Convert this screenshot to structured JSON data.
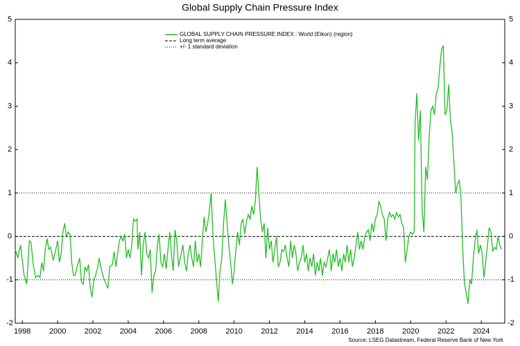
{
  "chart_data": {
    "type": "line",
    "title": "Global Supply Chain Pressure Index",
    "source": "Source: LSEG Datastream, Federal Reserve Bank of New York",
    "x": [
      1997.6,
      1997.75,
      1997.9,
      1998.1,
      1998.25,
      1998.4,
      1998.5,
      1998.6,
      1998.75,
      1998.9,
      1999.0,
      1999.1,
      1999.2,
      1999.3,
      1999.4,
      1999.5,
      1999.6,
      1999.75,
      1999.9,
      2000.0,
      2000.1,
      2000.2,
      2000.3,
      2000.4,
      2000.5,
      2000.6,
      2000.7,
      2000.8,
      2000.9,
      2001.0,
      2001.1,
      2001.25,
      2001.35,
      2001.45,
      2001.55,
      2001.65,
      2001.75,
      2001.85,
      2001.95,
      2002.05,
      2002.15,
      2002.25,
      2002.35,
      2002.5,
      2002.6,
      2002.75,
      2002.85,
      2002.95,
      2003.1,
      2003.2,
      2003.3,
      2003.4,
      2003.5,
      2003.6,
      2003.7,
      2003.8,
      2003.9,
      2004.0,
      2004.1,
      2004.2,
      2004.3,
      2004.4,
      2004.5,
      2004.55,
      2004.65,
      2004.75,
      2004.85,
      2004.95,
      2005.05,
      2005.15,
      2005.25,
      2005.35,
      2005.45,
      2005.55,
      2005.65,
      2005.75,
      2005.85,
      2005.95,
      2006.05,
      2006.15,
      2006.25,
      2006.35,
      2006.45,
      2006.55,
      2006.65,
      2006.75,
      2006.85,
      2006.95,
      2007.1,
      2007.2,
      2007.3,
      2007.4,
      2007.5,
      2007.6,
      2007.7,
      2007.8,
      2007.9,
      2008.0,
      2008.1,
      2008.2,
      2008.3,
      2008.4,
      2008.5,
      2008.6,
      2008.7,
      2008.8,
      2008.9,
      2009.0,
      2009.1,
      2009.2,
      2009.3,
      2009.4,
      2009.5,
      2009.6,
      2009.7,
      2009.8,
      2009.9,
      2010.0,
      2010.1,
      2010.2,
      2010.3,
      2010.4,
      2010.5,
      2010.6,
      2010.7,
      2010.8,
      2010.9,
      2011.0,
      2011.1,
      2011.2,
      2011.3,
      2011.4,
      2011.5,
      2011.6,
      2011.7,
      2011.8,
      2011.9,
      2012.0,
      2012.1,
      2012.2,
      2012.3,
      2012.4,
      2012.5,
      2012.6,
      2012.7,
      2012.8,
      2012.9,
      2013.0,
      2013.1,
      2013.2,
      2013.3,
      2013.4,
      2013.5,
      2013.6,
      2013.7,
      2013.8,
      2013.9,
      2014.0,
      2014.1,
      2014.2,
      2014.3,
      2014.4,
      2014.5,
      2014.6,
      2014.7,
      2014.8,
      2014.9,
      2015.0,
      2015.1,
      2015.2,
      2015.3,
      2015.4,
      2015.5,
      2015.6,
      2015.7,
      2015.8,
      2015.9,
      2016.0,
      2016.1,
      2016.2,
      2016.3,
      2016.4,
      2016.5,
      2016.6,
      2016.7,
      2016.8,
      2016.9,
      2017.0,
      2017.1,
      2017.2,
      2017.3,
      2017.4,
      2017.5,
      2017.6,
      2017.7,
      2017.8,
      2017.9,
      2018.0,
      2018.1,
      2018.2,
      2018.3,
      2018.4,
      2018.5,
      2018.6,
      2018.7,
      2018.8,
      2018.9,
      2019.0,
      2019.1,
      2019.2,
      2019.3,
      2019.4,
      2019.5,
      2019.6,
      2019.7,
      2019.8,
      2019.9,
      2020.0,
      2020.1,
      2020.2,
      2020.25,
      2020.35,
      2020.45,
      2020.55,
      2020.65,
      2020.75,
      2020.85,
      2020.95,
      2021.05,
      2021.15,
      2021.25,
      2021.35,
      2021.45,
      2021.55,
      2021.65,
      2021.75,
      2021.85,
      2021.95,
      2022.05,
      2022.15,
      2022.25,
      2022.35,
      2022.45,
      2022.55,
      2022.65,
      2022.75,
      2022.85,
      2022.95,
      2023.05,
      2023.15,
      2023.25,
      2023.35,
      2023.45,
      2023.55,
      2023.65,
      2023.75,
      2023.85,
      2023.95,
      2024.05,
      2024.15,
      2024.25,
      2024.35,
      2024.45,
      2024.55,
      2024.65,
      2024.75,
      2024.85,
      2024.95,
      2025.05,
      2025.15
    ],
    "series": [
      {
        "name": "GLOBAL SUPPLY CHAIN PRESSURE INDEX : World (Eikon) (region)",
        "color": "#22bb22",
        "values": [
          -0.3,
          -0.5,
          -0.2,
          -0.9,
          -1.1,
          -0.1,
          -0.15,
          -0.6,
          -0.95,
          -0.9,
          -0.95,
          -0.6,
          -0.8,
          -0.3,
          -0.05,
          -0.3,
          -0.25,
          -0.55,
          -0.3,
          -0.1,
          -0.6,
          -0.4,
          0.1,
          0.3,
          0.0,
          0.1,
          0.05,
          -0.6,
          -0.9,
          -0.9,
          -0.7,
          -0.5,
          -1.05,
          -1.1,
          -0.7,
          -0.8,
          -0.65,
          -1.2,
          -1.4,
          -1.0,
          -0.9,
          -0.75,
          -0.5,
          -0.8,
          -0.95,
          -1.1,
          -1.2,
          -0.7,
          -0.65,
          -0.35,
          -0.7,
          -0.4,
          -0.1,
          0.0,
          -0.1,
          0.05,
          -0.5,
          -0.3,
          -0.5,
          -0.2,
          0.4,
          0.35,
          0.4,
          -0.3,
          0.1,
          -0.9,
          -0.2,
          0.1,
          -0.4,
          -0.5,
          -0.3,
          -1.3,
          -0.9,
          -0.8,
          -0.2,
          0.05,
          -0.6,
          -0.7,
          -0.4,
          -0.75,
          -0.3,
          0.1,
          -0.4,
          -0.8,
          0.15,
          -0.1,
          -0.7,
          -0.5,
          -0.2,
          -0.6,
          -0.8,
          -0.4,
          -0.2,
          -0.5,
          -0.7,
          -0.1,
          -0.6,
          -0.4,
          -0.7,
          -0.1,
          0.45,
          0.1,
          0.3,
          0.6,
          1.0,
          0.0,
          -0.5,
          -1.0,
          -1.5,
          -0.8,
          -0.5,
          0.3,
          0.85,
          0.3,
          -0.2,
          -0.6,
          -1.1,
          -0.8,
          -0.3,
          0.1,
          -0.2,
          0.3,
          0.4,
          0.05,
          0.35,
          0.5,
          0.4,
          0.7,
          0.5,
          0.8,
          1.6,
          1.0,
          0.4,
          0.1,
          0.3,
          -0.5,
          0.2,
          -0.3,
          -0.1,
          -0.6,
          -0.3,
          0.0,
          -0.7,
          -0.6,
          -0.3,
          -0.35,
          -0.2,
          -0.5,
          -0.7,
          -0.1,
          -0.5,
          -0.2,
          -0.4,
          -0.8,
          -0.6,
          -0.5,
          -0.2,
          -0.6,
          -0.4,
          -0.8,
          -0.5,
          -0.7,
          -0.4,
          -0.9,
          -0.6,
          -0.8,
          -0.5,
          -0.9,
          -0.6,
          -0.7,
          -0.5,
          -0.3,
          -0.8,
          -0.4,
          -0.6,
          -0.3,
          -0.7,
          -0.5,
          -0.8,
          -0.4,
          -0.6,
          -0.2,
          -0.6,
          -0.3,
          -0.7,
          -0.5,
          -0.2,
          0.1,
          -0.3,
          -0.1,
          -0.3,
          0.0,
          0.1,
          0.15,
          -0.1,
          0.3,
          0.1,
          0.4,
          0.5,
          0.8,
          0.7,
          0.5,
          0.4,
          -0.1,
          0.4,
          0.55,
          0.45,
          0.5,
          0.4,
          0.55,
          0.45,
          0.5,
          0.3,
          0.2,
          -0.6,
          -0.3,
          0.0,
          0.1,
          0.05,
          0.1,
          2.6,
          3.3,
          2.2,
          2.9,
          0.6,
          0.1,
          1.6,
          1.3,
          2.3,
          2.9,
          3.0,
          2.8,
          3.3,
          3.4,
          3.9,
          4.3,
          4.4,
          2.8,
          2.9,
          3.5,
          2.7,
          2.4,
          1.7,
          1.0,
          1.2,
          1.3,
          0.9,
          -0.3,
          -1.1,
          -1.3,
          -1.55,
          -1.0,
          -1.1,
          -0.5,
          -0.1,
          0.15,
          -0.4,
          -0.2,
          -0.4,
          -0.95,
          -0.6,
          -0.2,
          0.2,
          0.1,
          -0.35,
          -0.25,
          -0.3,
          0.0,
          -0.2,
          -0.3
        ]
      }
    ],
    "average": {
      "name": "Long term average",
      "value": 0,
      "color": "#000000"
    },
    "std_band": {
      "name": "+/- 1 standard deviation",
      "values": [
        1,
        -1
      ],
      "color": "#000000"
    },
    "xlim": [
      1997.6,
      2025.33
    ],
    "xticks": [
      1998,
      2000,
      2002,
      2004,
      2006,
      2008,
      2010,
      2012,
      2014,
      2016,
      2018,
      2020,
      2022,
      2024
    ],
    "ylim": [
      -2,
      5
    ],
    "yticks": [
      -2,
      -1,
      0,
      1,
      2,
      3,
      4,
      5
    ],
    "y2lim": [
      -2,
      5
    ],
    "y2ticks": [
      -2,
      -1,
      0,
      1,
      2,
      3,
      4,
      5
    ]
  }
}
